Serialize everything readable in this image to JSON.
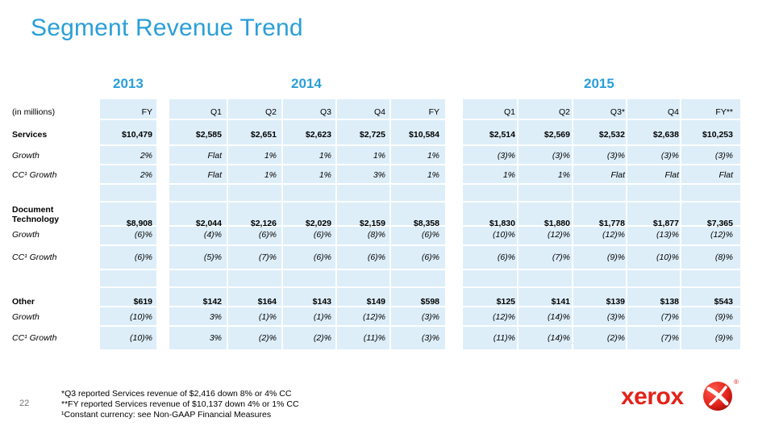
{
  "title": "Segment Revenue Trend",
  "years": [
    "2013",
    "2014",
    "2015"
  ],
  "header_label": "(in millions)",
  "columns": [
    "FY",
    "Q1",
    "Q2",
    "Q3",
    "Q4",
    "FY",
    "Q1",
    "Q2",
    "Q3*",
    "Q4",
    "FY**"
  ],
  "rows": [
    {
      "label": "Services",
      "values": [
        "$10,479",
        "$2,585",
        "$2,651",
        "$2,623",
        "$2,725",
        "$10,584",
        "$2,514",
        "$2,569",
        "$2,532",
        "$2,638",
        "$10,253"
      ]
    },
    {
      "label": "Growth",
      "values": [
        "2%",
        "Flat",
        "1%",
        "1%",
        "1%",
        "1%",
        "(3)%",
        "(3)%",
        "(3)%",
        "(3)%",
        "(3)%"
      ]
    },
    {
      "label": "CC¹ Growth",
      "values": [
        "2%",
        "Flat",
        "1%",
        "1%",
        "3%",
        "1%",
        "1%",
        "1%",
        "Flat",
        "Flat",
        "Flat"
      ]
    },
    {
      "label": "Document Technology",
      "label_line1": "Document",
      "label_line2": "Technology",
      "values": [
        "$8,908",
        "$2,044",
        "$2,126",
        "$2,029",
        "$2,159",
        "$8,358",
        "$1,830",
        "$1,880",
        "$1,778",
        "$1,877",
        "$7,365"
      ]
    },
    {
      "label": "Growth",
      "values": [
        "(6)%",
        "(4)%",
        "(6)%",
        "(6)%",
        "(8)%",
        "(6)%",
        "(10)%",
        "(12)%",
        "(12)%",
        "(13)%",
        "(12)%"
      ]
    },
    {
      "label": "CC¹ Growth",
      "values": [
        "(6)%",
        "(5)%",
        "(7)%",
        "(6)%",
        "(6)%",
        "(6)%",
        "(6)%",
        "(7)%",
        "(9)%",
        "(10)%",
        "(8)%"
      ]
    },
    {
      "label": "Other",
      "values": [
        "$619",
        "$142",
        "$164",
        "$143",
        "$149",
        "$598",
        "$125",
        "$141",
        "$139",
        "$138",
        "$543"
      ]
    },
    {
      "label": "Growth",
      "values": [
        "(10)%",
        "3%",
        "(1)%",
        "(1)%",
        "(12)%",
        "(3)%",
        "(12)%",
        "(14)%",
        "(3)%",
        "(7)%",
        "(9)%"
      ]
    },
    {
      "label": "CC¹ Growth",
      "values": [
        "(10)%",
        "3%",
        "(2)%",
        "(2)%",
        "(11)%",
        "(3)%",
        "(11)%",
        "(14)%",
        "(2)%",
        "(7)%",
        "(9)%"
      ]
    }
  ],
  "page_number": "22",
  "footnotes": [
    "*Q3 reported Services revenue of $2,416 down 8% or 4% CC",
    "**FY reported Services revenue of $10,137 down 4% or 1% CC",
    "¹Constant currency:  see Non-GAAP Financial Measures"
  ],
  "logo": {
    "text": "xerox",
    "registered": "®",
    "icon": "xerox-x-ball-icon",
    "color": "#e2231a"
  },
  "colors": {
    "accent": "#2a9fd8",
    "band": "#ddeef9"
  }
}
